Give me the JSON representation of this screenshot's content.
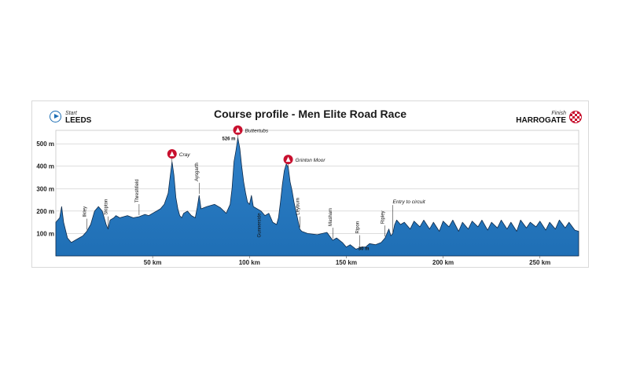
{
  "chart_data": {
    "type": "area",
    "title": "Course profile - Men Elite Road Race",
    "xlabel": "",
    "ylabel": "",
    "x_unit": "km",
    "y_unit": "m",
    "xlim": [
      0,
      270
    ],
    "ylim": [
      0,
      560
    ],
    "x_ticks": [
      {
        "value": 50,
        "label": "50 km"
      },
      {
        "value": 100,
        "label": "100 km"
      },
      {
        "value": 150,
        "label": "150 km"
      },
      {
        "value": 200,
        "label": "200 km"
      },
      {
        "value": 250,
        "label": "250 km"
      }
    ],
    "y_ticks": [
      {
        "value": 100,
        "label": "100 m"
      },
      {
        "value": 200,
        "label": "200 m"
      },
      {
        "value": 300,
        "label": "300 m"
      },
      {
        "value": 400,
        "label": "400 m"
      },
      {
        "value": 500,
        "label": "500 m"
      }
    ],
    "start": {
      "label": "Start",
      "place": "LEEDS"
    },
    "finish": {
      "label": "Finish",
      "place": "HARROGATE"
    },
    "profile": {
      "x": [
        0,
        2,
        3,
        4,
        6,
        8,
        10,
        12,
        14,
        16,
        18,
        20,
        22,
        24,
        26,
        27,
        28,
        30,
        31,
        33,
        35,
        37,
        40,
        43,
        46,
        48,
        50,
        52,
        54,
        56,
        58,
        59,
        60,
        61,
        62,
        63,
        64,
        65,
        66,
        68,
        70,
        72,
        73,
        74,
        75,
        78,
        82,
        85,
        88,
        90,
        91,
        92,
        93,
        94,
        95,
        96,
        97,
        98,
        99,
        100,
        101,
        102,
        104,
        106,
        108,
        110,
        112,
        114,
        115,
        116,
        117,
        118,
        119,
        120,
        121,
        122,
        123,
        124,
        125,
        126,
        127,
        130,
        135,
        140,
        143,
        145,
        148,
        150,
        152,
        155,
        158,
        160,
        162,
        165,
        168,
        170,
        172,
        173,
        174,
        175,
        176,
        178,
        180,
        183,
        185,
        188,
        190,
        193,
        195,
        198,
        200,
        203,
        205,
        208,
        210,
        213,
        215,
        218,
        220,
        223,
        225,
        228,
        230,
        233,
        235,
        238,
        240,
        243,
        245,
        248,
        250,
        253,
        255,
        258,
        260,
        263,
        265,
        268,
        270
      ],
      "y": [
        150,
        170,
        220,
        150,
        80,
        60,
        70,
        80,
        90,
        110,
        140,
        200,
        220,
        200,
        140,
        120,
        160,
        170,
        180,
        170,
        175,
        180,
        170,
        175,
        185,
        180,
        190,
        200,
        210,
        230,
        280,
        350,
        420,
        360,
        260,
        210,
        180,
        170,
        190,
        200,
        180,
        170,
        215,
        270,
        210,
        220,
        230,
        215,
        190,
        230,
        300,
        420,
        470,
        526,
        480,
        400,
        330,
        280,
        240,
        230,
        270,
        220,
        210,
        200,
        180,
        190,
        150,
        140,
        170,
        240,
        320,
        380,
        410,
        395,
        330,
        290,
        240,
        200,
        160,
        120,
        110,
        100,
        95,
        105,
        70,
        80,
        60,
        40,
        50,
        30,
        40,
        40,
        55,
        50,
        60,
        80,
        120,
        90,
        100,
        140,
        160,
        140,
        150,
        120,
        155,
        130,
        160,
        120,
        150,
        110,
        155,
        130,
        160,
        110,
        150,
        120,
        155,
        130,
        160,
        115,
        150,
        125,
        160,
        120,
        150,
        110,
        160,
        125,
        150,
        130,
        155,
        115,
        150,
        120,
        160,
        125,
        150,
        115,
        110
      ]
    },
    "climbs": [
      {
        "name": "Cray",
        "x": 60
      },
      {
        "name": "Buttertubs",
        "x": 94
      },
      {
        "name": "Grinton Moor",
        "x": 120
      }
    ],
    "places": [
      {
        "name": "Ilkley",
        "x": 16
      },
      {
        "name": "Skipton",
        "x": 27
      },
      {
        "name": "Threshfield",
        "x": 43
      },
      {
        "name": "Aysgarth",
        "x": 74
      },
      {
        "name": "Gunnerside",
        "x": 105
      },
      {
        "name": "Leyburn",
        "x": 126
      },
      {
        "name": "Masham",
        "x": 143
      },
      {
        "name": "Ripon",
        "x": 157
      },
      {
        "name": "Ripley",
        "x": 170
      }
    ],
    "annotations": [
      {
        "text": "526 m",
        "x": 94,
        "y": 526
      },
      {
        "text": "30 m",
        "x": 155,
        "y": 30
      },
      {
        "text": "Entry to circuit",
        "x": 174,
        "y": 220
      }
    ],
    "colors": {
      "fill": "#1f6fb5",
      "fill_top": "#2f80c8",
      "line": "#0d2a4a",
      "climb": "#c8102e",
      "grid": "#c9c9c9"
    }
  }
}
